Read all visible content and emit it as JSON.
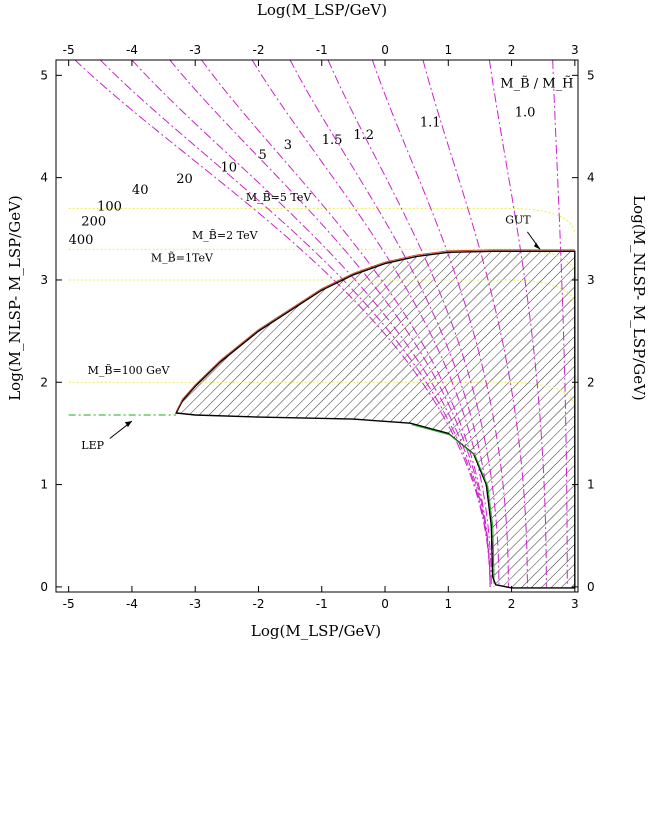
{
  "chart_data": {
    "type": "line",
    "xlabel": "Log(M_LSP/GeV)",
    "xlabel_top": "Log(M_LSP/GeV)",
    "ylabel": "Log(M_NLSP- M_LSP/GeV)",
    "ylabel_right": "Log(M_NLSP- M_LSP/GeV)",
    "xlim": [
      -5.2,
      3.05
    ],
    "ylim": [
      -0.05,
      5.15
    ],
    "xticks": [
      "-5",
      "-4",
      "-3",
      "-2",
      "-1",
      "0",
      "1",
      "2",
      "3"
    ],
    "yticks": [
      "0",
      "1",
      "2",
      "3",
      "4",
      "5"
    ],
    "legend_label": "M_B̃ / M_H̃",
    "region": {
      "name": "allowed region (hatched)",
      "boundary": [
        [
          -3.3,
          1.7
        ],
        [
          -3.2,
          1.82
        ],
        [
          -3.0,
          1.96
        ],
        [
          -2.6,
          2.2
        ],
        [
          -2.0,
          2.5
        ],
        [
          -1.5,
          2.7
        ],
        [
          -1.0,
          2.9
        ],
        [
          -0.5,
          3.05
        ],
        [
          0.0,
          3.16
        ],
        [
          0.5,
          3.23
        ],
        [
          1.0,
          3.27
        ],
        [
          1.7,
          3.28
        ],
        [
          3.0,
          3.28
        ],
        [
          3.0,
          -0.01
        ],
        [
          2.0,
          -0.01
        ],
        [
          1.75,
          0.02
        ],
        [
          1.7,
          0.1
        ],
        [
          1.68,
          0.6
        ],
        [
          1.6,
          1.0
        ],
        [
          1.4,
          1.3
        ],
        [
          1.0,
          1.5
        ],
        [
          0.4,
          1.6
        ],
        [
          -0.5,
          1.64
        ],
        [
          -2.0,
          1.66
        ],
        [
          -3.0,
          1.68
        ],
        [
          -3.3,
          1.7
        ]
      ]
    },
    "lep_line": {
      "label": "LEP",
      "y": 1.68,
      "x": [
        -5.0,
        -3.3
      ]
    },
    "gut_label": "GUT",
    "gut_point": [
      2.45,
      3.28
    ],
    "mb_lines": [
      {
        "label": "M_B̃=100 GeV",
        "y": 2.0
      },
      {
        "label": "M_B̃=1TeV",
        "y": 3.0
      },
      {
        "label": "M_B̃=2 TeV",
        "y": 3.3
      },
      {
        "label": "M_B̃=5 TeV",
        "y": 3.7
      }
    ],
    "ratio_curves": [
      {
        "label": "1.0",
        "x_top": 2.65,
        "x_bottom": 2.88
      },
      {
        "label": "1.1",
        "x_top": 1.65,
        "x_bottom": 2.55
      },
      {
        "label": "1.2",
        "x_top": 0.6,
        "x_bottom": 2.25
      },
      {
        "label": "1.5",
        "x_top": -0.2,
        "x_bottom": 1.95
      },
      {
        "label": "3",
        "x_top": -0.9,
        "x_bottom": 1.8
      },
      {
        "label": "5",
        "x_top": -1.5,
        "x_bottom": 1.72
      },
      {
        "label": "10",
        "x_top": -2.1,
        "x_bottom": 1.68
      },
      {
        "label": "20",
        "x_top": -2.9,
        "x_bottom": 1.66
      },
      {
        "label": "40",
        "x_top": -3.4,
        "x_bottom": 1.66
      },
      {
        "label": "100",
        "x_top": -4.0,
        "x_bottom": 1.66
      },
      {
        "label": "200",
        "x_top": -4.5,
        "x_bottom": 1.66
      },
      {
        "label": "400",
        "x_top": -4.9,
        "x_bottom": 1.66
      }
    ]
  }
}
